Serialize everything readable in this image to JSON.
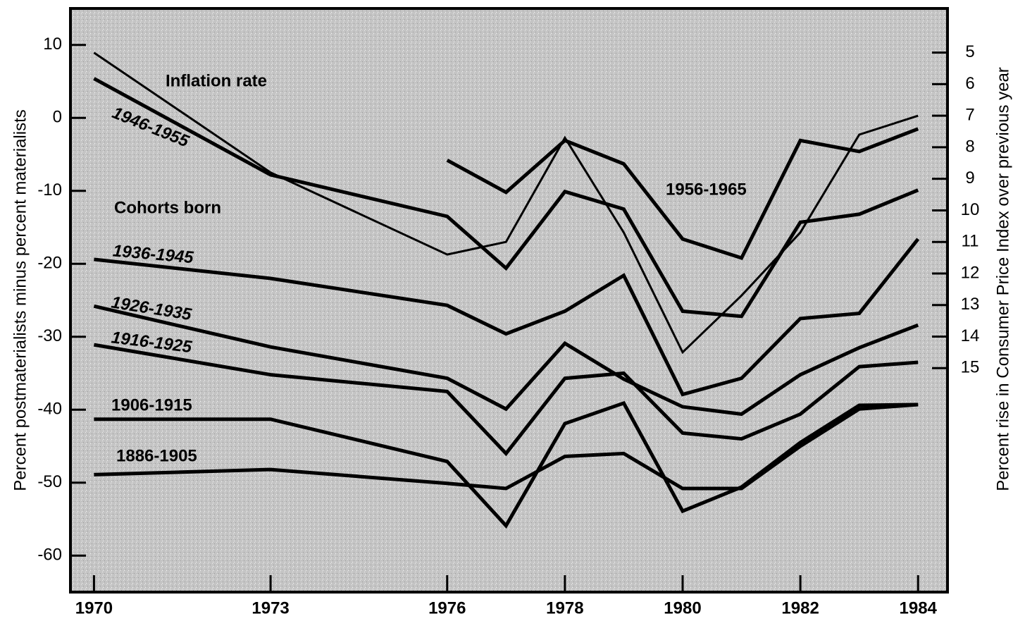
{
  "chart_data": {
    "type": "line",
    "y_label": "Percent postmaterialists minus percent materialists",
    "y2_label": "Percent rise in Consumer Price Index over previous year",
    "annotations": [
      "Cohorts born"
    ],
    "x": [
      1970,
      1973,
      1976,
      1977,
      1978,
      1979,
      1980,
      1981,
      1982,
      1983,
      1984
    ],
    "xlim": [
      1969.6,
      1984.5
    ],
    "xticks": [
      1970,
      1973,
      1976,
      1978,
      1980,
      1982,
      1984
    ],
    "ylim": [
      -65,
      15
    ],
    "yticks": [
      -60,
      -50,
      -40,
      -30,
      -20,
      -10,
      0,
      10
    ],
    "y2lim": [
      22.1,
      3.6
    ],
    "y2ticks": [
      5,
      6,
      7,
      8,
      9,
      10,
      11,
      12,
      13,
      14,
      15
    ],
    "series": [
      {
        "name": "Inflation rate",
        "color": "#000000",
        "axis": "y2",
        "values": [
          5.0,
          8.8,
          11.4,
          11.0,
          7.7,
          10.7,
          14.5,
          12.7,
          10.7,
          7.6,
          7.0
        ]
      },
      {
        "name": "1946-1955",
        "color": "#000000",
        "values": [
          5.4,
          -7.8,
          -13.5,
          -20.6,
          -10.1,
          -12.5,
          -26.5,
          -27.2,
          -14.3,
          -13.2,
          -9.9
        ]
      },
      {
        "name": "1956-1965",
        "color": "#000000",
        "values": [
          null,
          null,
          -5.8,
          -10.2,
          -3.1,
          -6.3,
          -16.6,
          -19.2,
          -3.1,
          -4.6,
          -1.5
        ]
      },
      {
        "name": "1936-1945",
        "color": "#000000",
        "values": [
          -19.4,
          -22.0,
          -25.7,
          -29.6,
          -26.5,
          -21.6,
          -37.9,
          -35.7,
          -27.5,
          -26.8,
          -16.6
        ]
      },
      {
        "name": "1926-1935",
        "color": "#000000",
        "values": [
          -25.8,
          -31.4,
          -35.7,
          -39.9,
          -30.9,
          -35.8,
          -39.6,
          -40.6,
          -35.2,
          -31.5,
          -28.4
        ]
      },
      {
        "name": "1916-1925",
        "color": "#000000",
        "values": [
          -31.1,
          -35.2,
          -37.5,
          -46.0,
          -35.7,
          -35.0,
          -43.2,
          -44.0,
          -40.6,
          -34.1,
          -33.5
        ]
      },
      {
        "name": "1906-1915",
        "color": "#000000",
        "values": [
          -41.3,
          -41.3,
          -47.1,
          -55.9,
          -41.9,
          -39.1,
          -53.9,
          -50.6,
          -44.5,
          -39.4,
          -39.3
        ]
      },
      {
        "name": "1886-1905",
        "color": "#000000",
        "values": [
          -48.9,
          -48.2,
          -50.1,
          -50.8,
          -46.4,
          -46.0,
          -50.8,
          -50.8,
          -45.0,
          -39.9,
          -39.3
        ]
      }
    ]
  }
}
